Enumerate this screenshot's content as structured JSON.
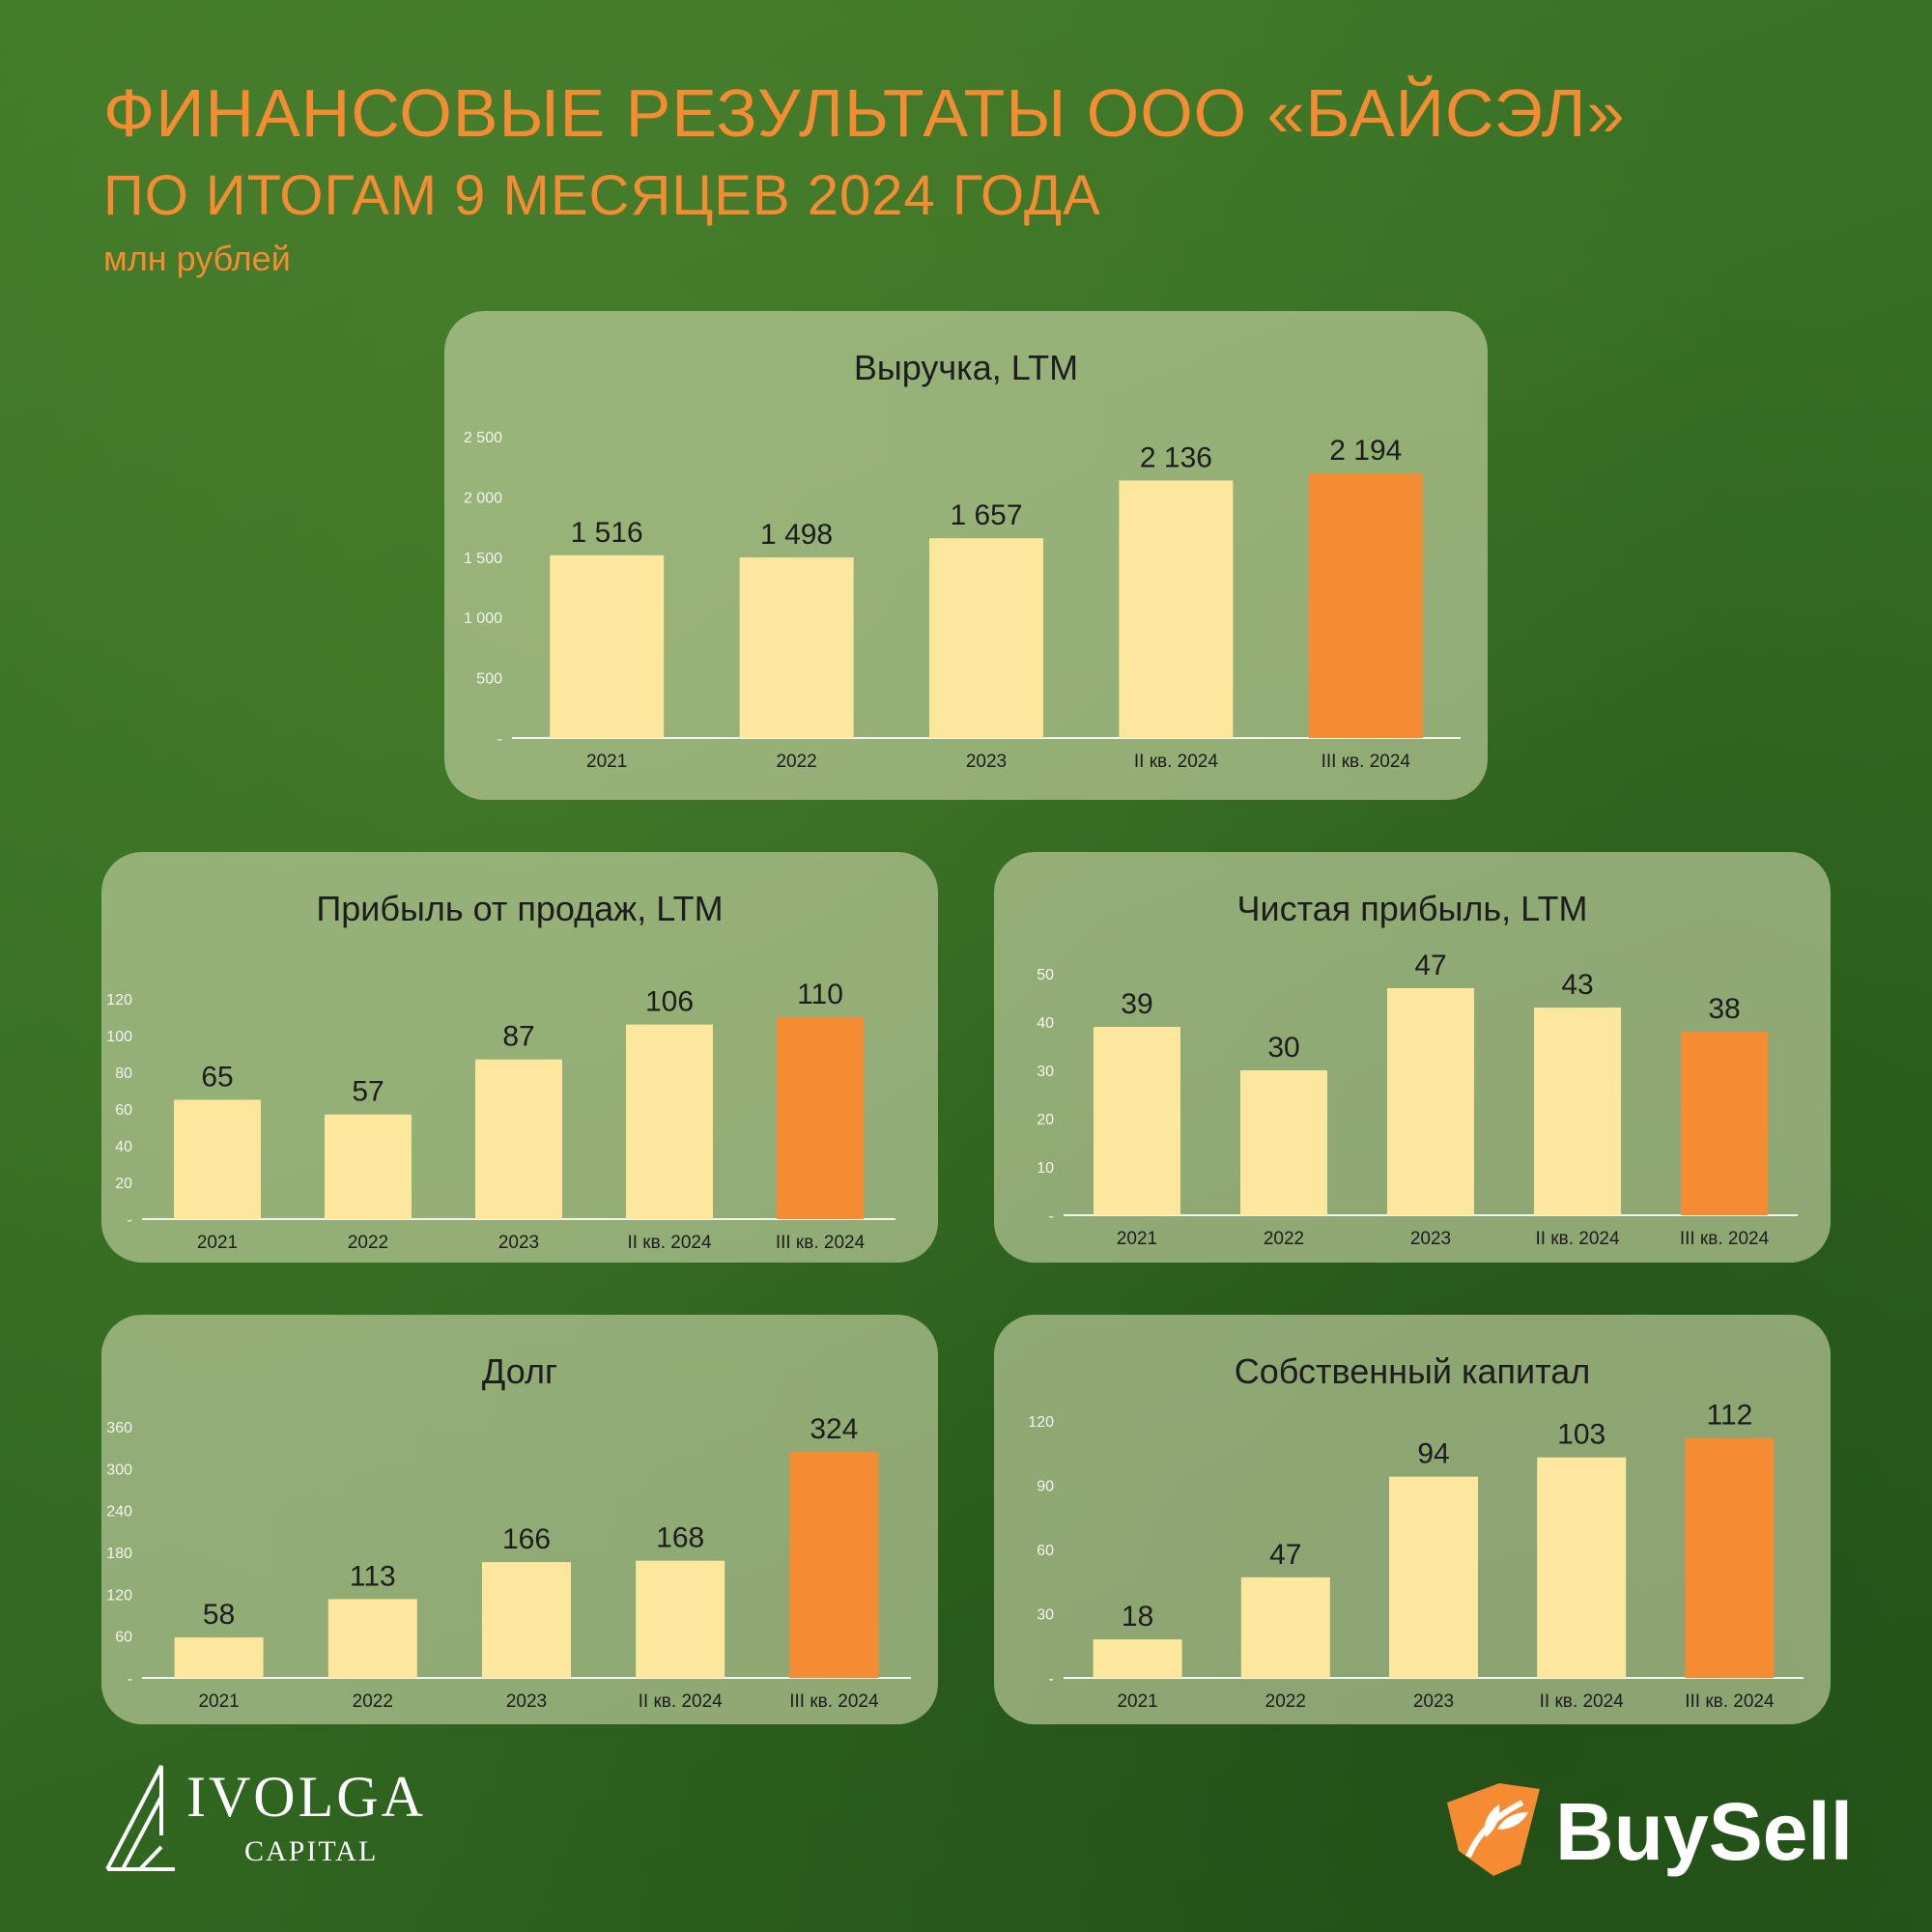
{
  "header": {
    "title": "ФИНАНСОВЫЕ РЕЗУЛЬТАТЫ ООО «БАЙСЭЛ»",
    "subtitle": "ПО ИТОГАМ 9 МЕСЯЦЕВ 2024 ГОДА",
    "unit": "млн рублей"
  },
  "colors": {
    "bar": "#fde79d",
    "bar_highlight": "#f58c33",
    "accent_text": "#f58c33",
    "card_bg": "#cdd7aa"
  },
  "logos": {
    "ivolga": {
      "name": "IVOLGA",
      "sub": "CAPITAL",
      "icon": "ivolga-chevron-icon"
    },
    "buysell": {
      "name": "BuySell",
      "icon": "buysell-leaf-icon"
    }
  },
  "chart_data": [
    {
      "type": "bar",
      "title": "Выручка, LTM",
      "categories": [
        "2021",
        "2022",
        "2023",
        "II кв. 2024",
        "III кв. 2024"
      ],
      "values": [
        1516,
        1498,
        1657,
        2136,
        2194
      ],
      "value_labels": [
        "1 516",
        "1 498",
        "1 657",
        "2 136",
        "2 194"
      ],
      "highlight_index": 4,
      "ylim": [
        0,
        2500
      ],
      "yticks": [
        "-",
        "500",
        "1 000",
        "1 500",
        "2 000",
        "2 500"
      ],
      "grid": false
    },
    {
      "type": "bar",
      "title": "Прибыль от продаж, LTM",
      "categories": [
        "2021",
        "2022",
        "2023",
        "II кв. 2024",
        "III кв. 2024"
      ],
      "values": [
        65,
        57,
        87,
        106,
        110
      ],
      "value_labels": [
        "65",
        "57",
        "87",
        "106",
        "110"
      ],
      "highlight_index": 4,
      "ylim": [
        0,
        120
      ],
      "yticks": [
        "-",
        "20",
        "40",
        "60",
        "80",
        "100",
        "120"
      ],
      "grid": false
    },
    {
      "type": "bar",
      "title": "Чистая прибыль, LTM",
      "categories": [
        "2021",
        "2022",
        "2023",
        "II кв. 2024",
        "III кв. 2024"
      ],
      "values": [
        39,
        30,
        47,
        43,
        38
      ],
      "value_labels": [
        "39",
        "30",
        "47",
        "43",
        "38"
      ],
      "highlight_index": 4,
      "ylim": [
        0,
        50
      ],
      "yticks": [
        "-",
        "10",
        "20",
        "30",
        "40",
        "50"
      ],
      "grid": false
    },
    {
      "type": "bar",
      "title": "Долг",
      "categories": [
        "2021",
        "2022",
        "2023",
        "II кв. 2024",
        "III кв. 2024"
      ],
      "values": [
        58,
        113,
        166,
        168,
        324
      ],
      "value_labels": [
        "58",
        "113",
        "166",
        "168",
        "324"
      ],
      "highlight_index": 4,
      "ylim": [
        0,
        360
      ],
      "yticks": [
        "-",
        "60",
        "120",
        "180",
        "240",
        "300",
        "360"
      ],
      "grid": false
    },
    {
      "type": "bar",
      "title": "Собственный капитал",
      "categories": [
        "2021",
        "2022",
        "2023",
        "II кв. 2024",
        "III кв. 2024"
      ],
      "values": [
        18,
        47,
        94,
        103,
        112
      ],
      "value_labels": [
        "18",
        "47",
        "94",
        "103",
        "112"
      ],
      "highlight_index": 4,
      "ylim": [
        0,
        120
      ],
      "yticks": [
        "-",
        "30",
        "60",
        "90",
        "120"
      ],
      "grid": false
    }
  ]
}
